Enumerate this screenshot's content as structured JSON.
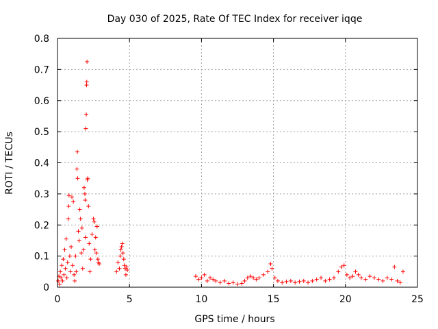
{
  "chart_data": {
    "type": "scatter",
    "title": "Day 030 of 2025, Rate Of TEC Index for receiver iqqe",
    "xlabel": "GPS time / hours",
    "ylabel": "ROTI / TECUs",
    "xlim": [
      0,
      25
    ],
    "ylim": [
      0,
      0.8
    ],
    "xticks": [
      0,
      5,
      10,
      15,
      20,
      25
    ],
    "xtick_labels": [
      "0",
      "5",
      "10",
      "15",
      "20",
      "25"
    ],
    "yticks": [
      0,
      0.1,
      0.2,
      0.3,
      0.4,
      0.5,
      0.6,
      0.7,
      0.8
    ],
    "ytick_labels": [
      "0",
      "0.1",
      "0.2",
      "0.3",
      "0.4",
      "0.5",
      "0.6",
      "0.7",
      "0.8"
    ],
    "grid": true,
    "marker": "+",
    "color": "#ff0000",
    "series": [
      {
        "name": "ROTI",
        "points": [
          [
            0.05,
            0.02
          ],
          [
            0.1,
            0.035
          ],
          [
            0.15,
            0.01
          ],
          [
            0.2,
            0.05
          ],
          [
            0.25,
            0.03
          ],
          [
            0.3,
            0.07
          ],
          [
            0.35,
            0.02
          ],
          [
            0.4,
            0.09
          ],
          [
            0.45,
            0.04
          ],
          [
            0.5,
            0.12
          ],
          [
            0.55,
            0.06
          ],
          [
            0.6,
            0.155
          ],
          [
            0.65,
            0.03
          ],
          [
            0.7,
            0.08
          ],
          [
            0.75,
            0.22
          ],
          [
            0.78,
            0.26
          ],
          [
            0.8,
            0.295
          ],
          [
            0.85,
            0.1
          ],
          [
            0.9,
            0.05
          ],
          [
            0.95,
            0.13
          ],
          [
            1.0,
            0.29
          ],
          [
            1.05,
            0.07
          ],
          [
            1.1,
            0.275
          ],
          [
            1.15,
            0.04
          ],
          [
            1.2,
            0.02
          ],
          [
            1.25,
            0.1
          ],
          [
            1.3,
            0.05
          ],
          [
            1.35,
            0.38
          ],
          [
            1.38,
            0.435
          ],
          [
            1.4,
            0.35
          ],
          [
            1.45,
            0.18
          ],
          [
            1.5,
            0.15
          ],
          [
            1.55,
            0.25
          ],
          [
            1.6,
            0.22
          ],
          [
            1.65,
            0.11
          ],
          [
            1.7,
            0.19
          ],
          [
            1.75,
            0.06
          ],
          [
            1.8,
            0.12
          ],
          [
            1.85,
            0.32
          ],
          [
            1.9,
            0.3
          ],
          [
            1.92,
            0.28
          ],
          [
            1.95,
            0.16
          ],
          [
            1.97,
            0.51
          ],
          [
            2.0,
            0.555
          ],
          [
            2.02,
            0.65
          ],
          [
            2.03,
            0.66
          ],
          [
            2.05,
            0.725
          ],
          [
            2.07,
            0.345
          ],
          [
            2.1,
            0.35
          ],
          [
            2.15,
            0.26
          ],
          [
            2.2,
            0.14
          ],
          [
            2.25,
            0.05
          ],
          [
            2.3,
            0.09
          ],
          [
            2.4,
            0.17
          ],
          [
            2.5,
            0.22
          ],
          [
            2.55,
            0.21
          ],
          [
            2.6,
            0.12
          ],
          [
            2.65,
            0.16
          ],
          [
            2.7,
            0.11
          ],
          [
            2.75,
            0.195
          ],
          [
            2.8,
            0.09
          ],
          [
            2.85,
            0.08
          ],
          [
            2.9,
            0.075
          ],
          [
            4.1,
            0.05
          ],
          [
            4.2,
            0.08
          ],
          [
            4.3,
            0.06
          ],
          [
            4.35,
            0.1
          ],
          [
            4.4,
            0.12
          ],
          [
            4.45,
            0.13
          ],
          [
            4.5,
            0.14
          ],
          [
            4.55,
            0.11
          ],
          [
            4.6,
            0.09
          ],
          [
            4.65,
            0.07
          ],
          [
            4.7,
            0.06
          ],
          [
            4.75,
            0.04
          ],
          [
            4.8,
            0.065
          ],
          [
            4.85,
            0.055
          ],
          [
            9.6,
            0.035
          ],
          [
            9.8,
            0.025
          ],
          [
            10.0,
            0.03
          ],
          [
            10.2,
            0.04
          ],
          [
            10.4,
            0.02
          ],
          [
            10.6,
            0.03
          ],
          [
            10.8,
            0.025
          ],
          [
            11.0,
            0.02
          ],
          [
            11.3,
            0.015
          ],
          [
            11.6,
            0.02
          ],
          [
            11.9,
            0.012
          ],
          [
            12.2,
            0.015
          ],
          [
            12.5,
            0.01
          ],
          [
            12.8,
            0.012
          ],
          [
            13.0,
            0.02
          ],
          [
            13.2,
            0.03
          ],
          [
            13.4,
            0.035
          ],
          [
            13.6,
            0.03
          ],
          [
            13.8,
            0.025
          ],
          [
            14.0,
            0.03
          ],
          [
            14.3,
            0.04
          ],
          [
            14.6,
            0.05
          ],
          [
            14.8,
            0.075
          ],
          [
            14.9,
            0.06
          ],
          [
            15.1,
            0.03
          ],
          [
            15.3,
            0.02
          ],
          [
            15.6,
            0.015
          ],
          [
            15.9,
            0.018
          ],
          [
            16.2,
            0.02
          ],
          [
            16.5,
            0.015
          ],
          [
            16.8,
            0.018
          ],
          [
            17.1,
            0.02
          ],
          [
            17.4,
            0.015
          ],
          [
            17.7,
            0.02
          ],
          [
            18.0,
            0.025
          ],
          [
            18.3,
            0.03
          ],
          [
            18.6,
            0.02
          ],
          [
            18.9,
            0.025
          ],
          [
            19.2,
            0.03
          ],
          [
            19.5,
            0.05
          ],
          [
            19.7,
            0.065
          ],
          [
            19.9,
            0.07
          ],
          [
            20.1,
            0.04
          ],
          [
            20.3,
            0.03
          ],
          [
            20.5,
            0.035
          ],
          [
            20.7,
            0.05
          ],
          [
            20.9,
            0.04
          ],
          [
            21.1,
            0.03
          ],
          [
            21.4,
            0.025
          ],
          [
            21.7,
            0.035
          ],
          [
            22.0,
            0.03
          ],
          [
            22.3,
            0.025
          ],
          [
            22.6,
            0.02
          ],
          [
            22.9,
            0.03
          ],
          [
            23.2,
            0.025
          ],
          [
            23.4,
            0.065
          ],
          [
            23.6,
            0.02
          ],
          [
            23.8,
            0.015
          ],
          [
            24.0,
            0.05
          ]
        ]
      }
    ]
  }
}
